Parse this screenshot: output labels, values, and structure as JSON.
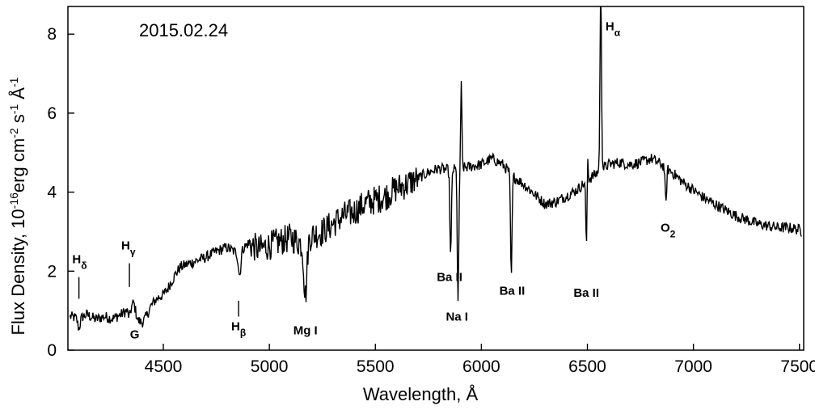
{
  "chart_data": {
    "type": "line",
    "date_label": "2015.02.24",
    "xlabel": "Wavelength,  Å",
    "ylabel_parts": [
      {
        "t": "Flux Density, 10",
        "sup": false
      },
      {
        "t": "-16",
        "sup": true
      },
      {
        "t": "erg cm",
        "sup": false
      },
      {
        "t": "-2",
        "sup": true
      },
      {
        "t": " s",
        "sup": false
      },
      {
        "t": "-1",
        "sup": true
      },
      {
        "t": " Å",
        "sup": false
      },
      {
        "t": "-1",
        "sup": true
      }
    ],
    "xlim": [
      4050,
      7520
    ],
    "ylim": [
      0,
      8.7
    ],
    "xticks": [
      4500,
      5000,
      5500,
      6000,
      6500,
      7000,
      7500
    ],
    "xtick_labels": [
      "4500",
      "5000",
      "5500",
      "6000",
      "6500",
      "7000",
      "7500"
    ],
    "yticks": [
      0,
      2,
      4,
      6,
      8
    ],
    "ytick_labels": [
      "0",
      "2",
      "4",
      "6",
      "8"
    ],
    "grid": false,
    "color": "#000000",
    "series_points": [
      [
        4060,
        0.85
      ],
      [
        4100,
        0.8
      ],
      [
        4140,
        0.9
      ],
      [
        4180,
        0.78
      ],
      [
        4220,
        0.85
      ],
      [
        4260,
        0.8
      ],
      [
        4300,
        0.9
      ],
      [
        4340,
        1.05
      ],
      [
        4360,
        1.2
      ],
      [
        4380,
        0.75
      ],
      [
        4400,
        0.7
      ],
      [
        4420,
        0.85
      ],
      [
        4440,
        1.1
      ],
      [
        4460,
        1.25
      ],
      [
        4480,
        1.35
      ],
      [
        4500,
        1.4
      ],
      [
        4520,
        1.55
      ],
      [
        4540,
        1.75
      ],
      [
        4560,
        1.95
      ],
      [
        4580,
        2.1
      ],
      [
        4600,
        2.15
      ],
      [
        4650,
        2.25
      ],
      [
        4700,
        2.35
      ],
      [
        4750,
        2.5
      ],
      [
        4800,
        2.6
      ],
      [
        4850,
        2.45
      ],
      [
        4900,
        2.7
      ],
      [
        4950,
        2.55
      ],
      [
        5000,
        2.65
      ],
      [
        5050,
        2.75
      ],
      [
        5100,
        2.85
      ],
      [
        5150,
        2.7
      ],
      [
        5200,
        2.9
      ],
      [
        5250,
        3.0
      ],
      [
        5300,
        3.2
      ],
      [
        5350,
        3.4
      ],
      [
        5400,
        3.5
      ],
      [
        5450,
        3.7
      ],
      [
        5500,
        3.8
      ],
      [
        5550,
        3.9
      ],
      [
        5600,
        4.1
      ],
      [
        5650,
        4.2
      ],
      [
        5700,
        4.35
      ],
      [
        5750,
        4.5
      ],
      [
        5800,
        4.6
      ],
      [
        5850,
        4.55
      ],
      [
        5900,
        4.6
      ],
      [
        5950,
        4.65
      ],
      [
        6000,
        4.7
      ],
      [
        6050,
        4.85
      ],
      [
        6100,
        4.7
      ],
      [
        6150,
        4.4
      ],
      [
        6200,
        4.2
      ],
      [
        6250,
        3.95
      ],
      [
        6300,
        3.7
      ],
      [
        6350,
        3.75
      ],
      [
        6400,
        3.9
      ],
      [
        6450,
        4.05
      ],
      [
        6500,
        4.3
      ],
      [
        6550,
        4.5
      ],
      [
        6600,
        4.7
      ],
      [
        6650,
        4.75
      ],
      [
        6700,
        4.7
      ],
      [
        6750,
        4.75
      ],
      [
        6800,
        4.85
      ],
      [
        6850,
        4.7
      ],
      [
        6900,
        4.5
      ],
      [
        6950,
        4.25
      ],
      [
        7000,
        4.05
      ],
      [
        7050,
        3.85
      ],
      [
        7100,
        3.7
      ],
      [
        7150,
        3.55
      ],
      [
        7200,
        3.4
      ],
      [
        7250,
        3.3
      ],
      [
        7300,
        3.2
      ],
      [
        7350,
        3.15
      ],
      [
        7400,
        3.1
      ],
      [
        7450,
        3.1
      ],
      [
        7500,
        3.05
      ],
      [
        7510,
        3.0
      ]
    ],
    "spectral_features": [
      {
        "x": 4102,
        "depth": -0.25,
        "width": 8
      },
      {
        "x": 4340,
        "depth": -0.2,
        "width": 8
      },
      {
        "x": 4860,
        "depth": -0.6,
        "width": 8
      },
      {
        "x": 5170,
        "depth": -1.4,
        "width": 10
      },
      {
        "x": 5855,
        "depth": -2.2,
        "width": 5
      },
      {
        "x": 5890,
        "depth": -3.4,
        "width": 5
      },
      {
        "x": 5905,
        "depth": 2.1,
        "width": 4
      },
      {
        "x": 6141,
        "depth": -2.6,
        "width": 5
      },
      {
        "x": 6497,
        "depth": -2.4,
        "width": 5
      },
      {
        "x": 6500,
        "depth": 1.8,
        "width": 4
      },
      {
        "x": 6563,
        "depth": 4.6,
        "width": 5
      },
      {
        "x": 6870,
        "depth": -0.9,
        "width": 5
      }
    ],
    "annotations": [
      {
        "main": "H",
        "sub": "δ",
        "lx": 4105,
        "ly": 2.2,
        "tick": [
          4102,
          1.3,
          1.85
        ]
      },
      {
        "main": "H",
        "sub": "γ",
        "lx": 4335,
        "ly": 2.55,
        "tick": [
          4340,
          1.6,
          2.2
        ]
      },
      {
        "main": "G",
        "sub": "",
        "lx": 4365,
        "ly": 0.3,
        "tick": null
      },
      {
        "main": "H",
        "sub": "β",
        "lx": 4855,
        "ly": 0.5,
        "tick": [
          4855,
          0.85,
          1.25
        ]
      },
      {
        "main": "Mg I",
        "sub": "",
        "lx": 5170,
        "ly": 0.4,
        "tick": null
      },
      {
        "main": "Ba II",
        "sub": "",
        "lx": 5850,
        "ly": 1.75,
        "tick": null
      },
      {
        "main": "Na I",
        "sub": "",
        "lx": 5885,
        "ly": 0.75,
        "tick": null
      },
      {
        "main": "Ba II",
        "sub": "",
        "lx": 6145,
        "ly": 1.4,
        "tick": null
      },
      {
        "main": "Ba II",
        "sub": "",
        "lx": 6495,
        "ly": 1.35,
        "tick": null
      },
      {
        "main": "H",
        "sub": "α",
        "lx": 6620,
        "ly": 8.1,
        "tick": null
      },
      {
        "main": "O",
        "sub": "2",
        "lx": 6880,
        "ly": 3.0,
        "tick": null
      }
    ]
  }
}
